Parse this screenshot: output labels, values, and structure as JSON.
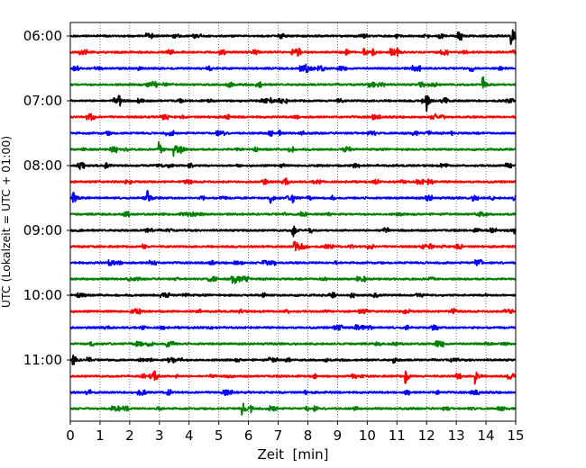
{
  "chart_data": {
    "type": "line",
    "title": "",
    "xlabel": "Zeit  [min]",
    "ylabel": "UTC (Lokalzeit = UTC + 01:00)",
    "xlim": [
      0,
      15
    ],
    "x_ticks": [
      "0",
      "1",
      "2",
      "3",
      "4",
      "5",
      "6",
      "7",
      "8",
      "9",
      "10",
      "11",
      "12",
      "13",
      "14",
      "15"
    ],
    "y_tick_labels": [
      "06:00",
      "07:00",
      "08:00",
      "09:00",
      "10:00",
      "11:00"
    ],
    "grid": "vertical dotted lines at each minute",
    "trace_interval_minutes": 15,
    "trace_colors": [
      "#000000",
      "#ff0000",
      "#0000ff",
      "#008000"
    ],
    "series": [
      {
        "start": "06:00",
        "events": [
          {
            "t": 14.85,
            "amp": 1.0
          },
          {
            "t": 10.95,
            "amp": 0.3
          }
        ]
      },
      {
        "start": "06:15",
        "events": [
          {
            "t": 9.3,
            "amp": 0.35
          },
          {
            "t": 9.9,
            "amp": 0.4
          },
          {
            "t": 10.2,
            "amp": 0.35
          },
          {
            "t": 10.8,
            "amp": 0.3
          },
          {
            "t": 11.0,
            "amp": 0.3
          }
        ]
      },
      {
        "start": "06:30",
        "events": [
          {
            "t": 2.3,
            "amp": 0.3
          }
        ]
      },
      {
        "start": "06:45",
        "events": [
          {
            "t": 13.9,
            "amp": 1.0
          }
        ]
      },
      {
        "start": "07:00",
        "events": [
          {
            "t": 1.65,
            "amp": 0.5
          },
          {
            "t": 6.75,
            "amp": 0.3
          },
          {
            "t": 12.0,
            "amp": 1.0
          }
        ]
      },
      {
        "start": "07:15",
        "events": []
      },
      {
        "start": "07:30",
        "events": []
      },
      {
        "start": "07:45",
        "events": [
          {
            "t": 3.0,
            "amp": 0.8
          },
          {
            "t": 3.5,
            "amp": 0.6
          },
          {
            "t": 3.75,
            "amp": 0.4
          }
        ]
      },
      {
        "start": "08:00",
        "events": [
          {
            "t": 1.2,
            "amp": 0.3
          },
          {
            "t": 5.6,
            "amp": 0.3
          }
        ]
      },
      {
        "start": "08:15",
        "events": []
      },
      {
        "start": "08:30",
        "events": [
          {
            "t": 0.1,
            "amp": 0.8
          },
          {
            "t": 2.6,
            "amp": 0.9
          },
          {
            "t": 6.75,
            "amp": 0.6
          },
          {
            "t": 7.5,
            "amp": 0.7
          }
        ]
      },
      {
        "start": "08:45",
        "events": []
      },
      {
        "start": "09:00",
        "events": [
          {
            "t": 7.5,
            "amp": 1.0
          }
        ]
      },
      {
        "start": "09:15",
        "events": [
          {
            "t": 7.55,
            "amp": 0.9
          }
        ]
      },
      {
        "start": "09:30",
        "events": []
      },
      {
        "start": "09:45",
        "events": []
      },
      {
        "start": "10:00",
        "events": []
      },
      {
        "start": "10:15",
        "events": []
      },
      {
        "start": "10:30",
        "events": []
      },
      {
        "start": "10:45",
        "events": []
      },
      {
        "start": "11:00",
        "events": [
          {
            "t": 0.1,
            "amp": 0.8
          },
          {
            "t": 10.9,
            "amp": 0.3
          }
        ]
      },
      {
        "start": "11:15",
        "events": [
          {
            "t": 2.8,
            "amp": 0.8
          },
          {
            "t": 11.3,
            "amp": 0.9
          },
          {
            "t": 13.65,
            "amp": 0.9
          }
        ]
      },
      {
        "start": "11:30",
        "events": []
      },
      {
        "start": "11:45",
        "events": [
          {
            "t": 5.8,
            "amp": 0.8
          },
          {
            "t": 6.1,
            "amp": 0.4
          }
        ]
      }
    ]
  }
}
